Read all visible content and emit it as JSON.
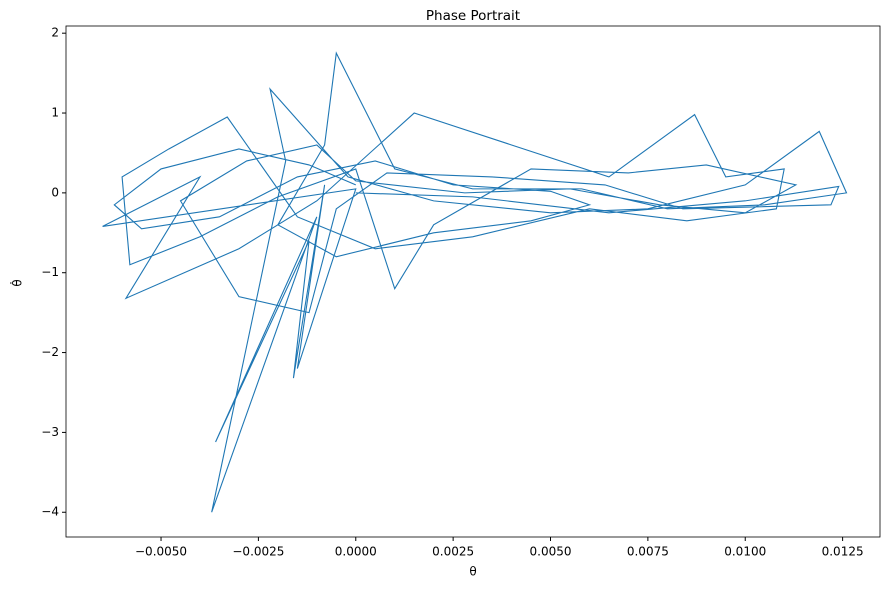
{
  "chart_data": {
    "type": "line",
    "title": "Phase Portrait",
    "x_label": "θ",
    "y_label": "θ̇",
    "xlim": [
      -0.00744,
      0.01346
    ],
    "ylim": [
      -4.31,
      2.09
    ],
    "xticks": [
      {
        "value": -0.005,
        "label": "−0.0050"
      },
      {
        "value": -0.0025,
        "label": "−0.0025"
      },
      {
        "value": 0,
        "label": "0.0000"
      },
      {
        "value": 0.0025,
        "label": "0.0025"
      },
      {
        "value": 0.005,
        "label": "0.0050"
      },
      {
        "value": 0.0075,
        "label": "0.0075"
      },
      {
        "value": 0.01,
        "label": "0.0100"
      },
      {
        "value": 0.0125,
        "label": "0.0125"
      }
    ],
    "yticks": [
      {
        "value": -4,
        "label": "−4"
      },
      {
        "value": -3,
        "label": "−3"
      },
      {
        "value": -2,
        "label": "−2"
      },
      {
        "value": -1,
        "label": "−1"
      },
      0,
      1,
      2
    ],
    "color": "#1f77b4",
    "x": [
      0.0,
      -0.0012,
      -0.003,
      -0.005,
      -0.0062,
      -0.0055,
      -0.0035,
      -0.0015,
      0.0005,
      0.0025,
      0.005,
      0.006,
      0.0045,
      0.002,
      -0.0005,
      -0.002,
      -0.0008,
      -0.0005,
      0.001,
      0.003,
      0.0058,
      0.008,
      0.0105,
      0.0126,
      0.0119,
      0.01,
      0.0075,
      0.005,
      0.002,
      -0.0002,
      -0.0022,
      -0.0018,
      -0.0037,
      -0.001,
      -0.0036,
      -0.0012,
      -0.0016,
      -0.0008,
      -0.0015,
      0.0,
      -0.0065,
      -0.004,
      -0.0059,
      -0.003,
      -0.001,
      0.0015,
      0.004,
      0.0065,
      0.0087,
      0.0095,
      0.011,
      0.0108,
      0.0085,
      0.006,
      0.003,
      0.0005,
      -0.0015,
      -0.0033,
      -0.0048,
      -0.006,
      -0.0058,
      -0.004,
      -0.002,
      0.0,
      0.001,
      0.002,
      0.0045,
      0.007,
      0.009,
      0.0113,
      0.01,
      0.0078,
      0.0055,
      0.0028,
      0.0,
      -0.001,
      -0.0028,
      -0.0045,
      -0.003,
      -0.0012,
      -0.0005,
      0.0008,
      0.0035,
      0.0064,
      0.0084,
      0.0122,
      0.0124,
      0.01,
      0.0065,
      0.003,
      0.0
    ],
    "values": [
      0.1,
      0.35,
      0.55,
      0.3,
      -0.15,
      -0.45,
      -0.3,
      0.2,
      0.4,
      0.1,
      0.02,
      -0.15,
      -0.35,
      -0.5,
      -0.8,
      -0.4,
      0.6,
      1.75,
      0.3,
      0.05,
      0.05,
      -0.2,
      -0.15,
      0.0,
      0.77,
      0.1,
      -0.2,
      -0.25,
      -0.1,
      0.2,
      1.3,
      0.4,
      -4.0,
      -0.3,
      -3.12,
      -0.6,
      -2.32,
      0.1,
      -2.2,
      0.05,
      -0.42,
      0.2,
      -1.32,
      -0.7,
      -0.1,
      1.0,
      0.6,
      0.2,
      0.98,
      0.2,
      0.3,
      -0.2,
      -0.35,
      -0.2,
      -0.55,
      -0.7,
      -0.3,
      0.95,
      0.55,
      0.2,
      -0.9,
      -0.55,
      -0.05,
      0.3,
      -1.2,
      -0.4,
      0.3,
      0.25,
      0.35,
      0.1,
      -0.25,
      -0.15,
      0.05,
      0.0,
      0.15,
      0.6,
      0.4,
      -0.1,
      -1.3,
      -1.5,
      -0.2,
      0.25,
      0.2,
      0.1,
      -0.2,
      -0.15,
      0.08,
      -0.1,
      -0.25,
      -0.05,
      0.0
    ]
  }
}
